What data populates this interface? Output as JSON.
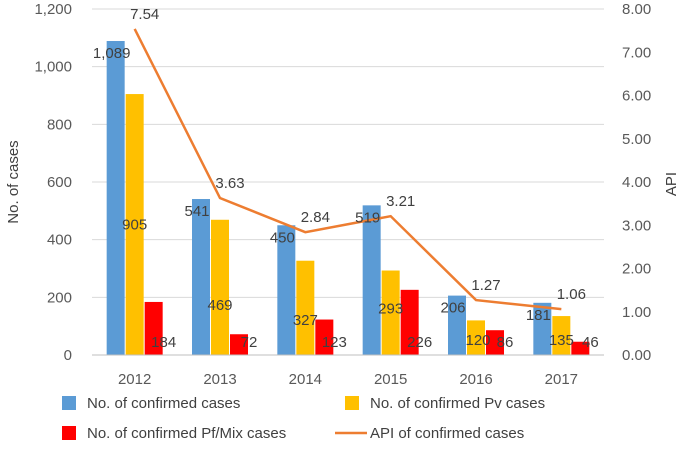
{
  "chart_data": {
    "type": "bar",
    "categories": [
      "2012",
      "2013",
      "2014",
      "2015",
      "2016",
      "2017"
    ],
    "series": [
      {
        "name": "No. of confirmed cases",
        "type": "bar",
        "axis": "left",
        "color": "#5B9BD5",
        "values": [
          1089,
          541,
          450,
          519,
          206,
          181
        ],
        "labels": [
          "1,089",
          "541",
          "450",
          "519",
          "206",
          "181"
        ]
      },
      {
        "name": "No. of confirmed Pv cases",
        "type": "bar",
        "axis": "left",
        "color": "#FFC000",
        "values": [
          905,
          469,
          327,
          293,
          120,
          135
        ],
        "labels": [
          "905",
          "469",
          "327",
          "293",
          "120",
          "135"
        ]
      },
      {
        "name": "No. of confirmed Pf/Mix cases",
        "type": "bar",
        "axis": "left",
        "color": "#FF0000",
        "values": [
          184,
          72,
          123,
          226,
          86,
          46
        ],
        "labels": [
          "184",
          "72",
          "123",
          "226",
          "86",
          "46"
        ]
      },
      {
        "name": "API of confirmed cases",
        "type": "line",
        "axis": "right",
        "color": "#ED7D31",
        "values": [
          7.54,
          3.63,
          2.84,
          3.21,
          1.27,
          1.06
        ],
        "labels": [
          "7.54",
          "3.63",
          "2.84",
          "3.21",
          "1.27",
          "1.06"
        ]
      }
    ],
    "ylabel": "No. of cases",
    "ylabel_right": "API",
    "ylim": [
      0,
      1200
    ],
    "ylim_right": [
      0,
      8
    ],
    "yticks": [
      "0",
      "200",
      "400",
      "600",
      "800",
      "1,000",
      "1,200"
    ],
    "yticks_right": [
      "0.00",
      "1.00",
      "2.00",
      "3.00",
      "4.00",
      "5.00",
      "6.00",
      "7.00",
      "8.00"
    ],
    "grid": true,
    "legend_position": "bottom"
  }
}
